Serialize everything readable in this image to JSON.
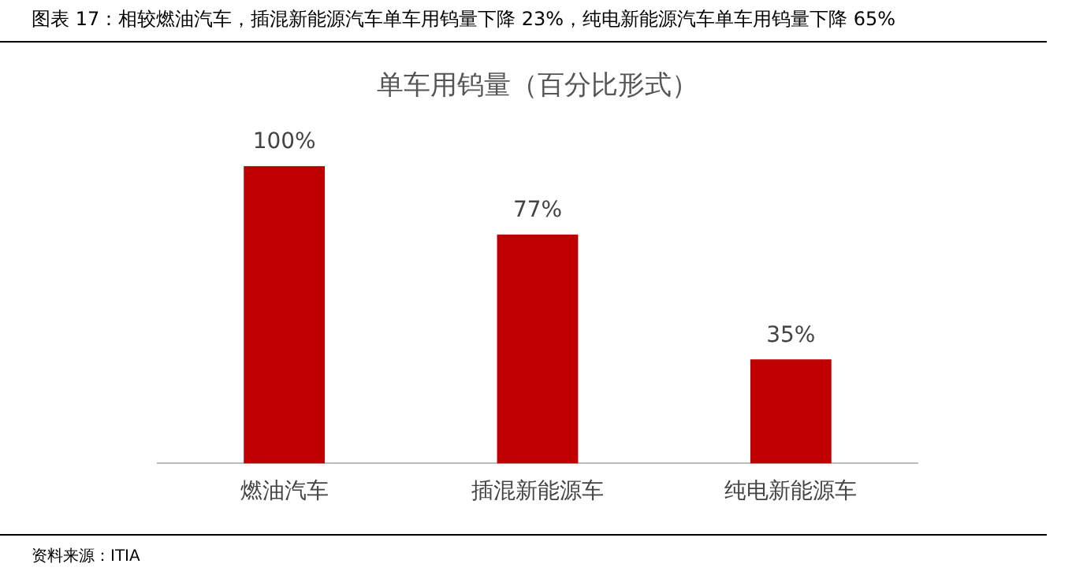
{
  "chart_data": {
    "type": "bar",
    "title": "图表 17：相较燃油汽车，插混新能源汽车单车用钨量下降 23%，纯电新能源汽车单车用钨量下降 65%",
    "subtitle": "单车用钨量（百分比形式）",
    "categories": [
      "燃油汽车",
      "插混新能源车",
      "纯电新能源车"
    ],
    "values": [
      100,
      77,
      35
    ],
    "value_labels": [
      "100%",
      "77%",
      "35%"
    ],
    "color": "#c00000",
    "grid": false,
    "legend": false,
    "annotations": [
      "资料来源：ITIA"
    ]
  }
}
